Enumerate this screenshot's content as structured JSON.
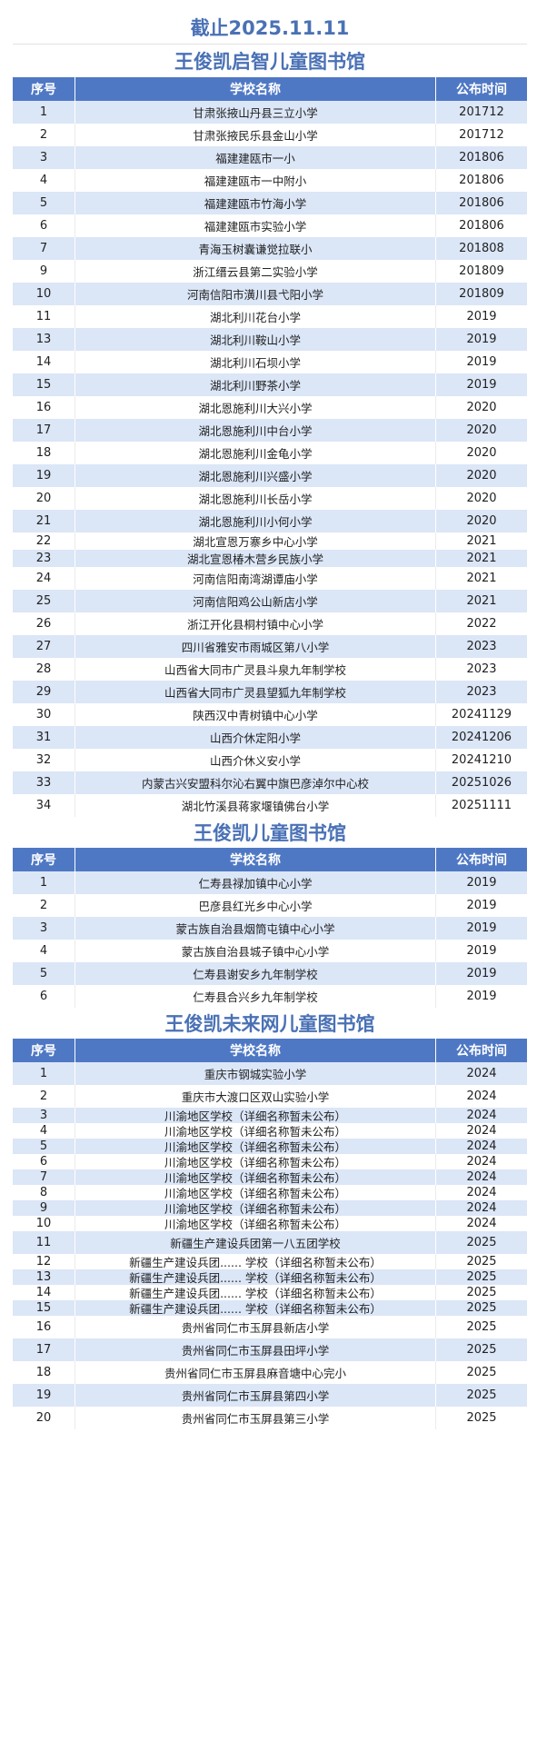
{
  "header": {
    "date_line": "截止2025.11.11"
  },
  "columns": {
    "no": "序号",
    "school": "学校名称",
    "date": "公布时间"
  },
  "sections": [
    {
      "title": "王俊凯启智儿童图书馆",
      "rows": [
        {
          "no": "1",
          "school": "甘肃张掖山丹县三立小学",
          "date": "201712"
        },
        {
          "no": "2",
          "school": "甘肃张掖民乐县金山小学",
          "date": "201712"
        },
        {
          "no": "3",
          "school": "福建建瓯市一小",
          "date": "201806"
        },
        {
          "no": "4",
          "school": "福建建瓯市一中附小",
          "date": "201806"
        },
        {
          "no": "5",
          "school": "福建建瓯市竹海小学",
          "date": "201806"
        },
        {
          "no": "6",
          "school": "福建建瓯市实验小学",
          "date": "201806"
        },
        {
          "no": "7",
          "school": "青海玉树囊谦觉拉联小",
          "date": "201808"
        },
        {
          "no": "9",
          "school": "浙江缙云县第二实验小学",
          "date": "201809"
        },
        {
          "no": "10",
          "school": "河南信阳市潢川县弋阳小学",
          "date": "201809"
        },
        {
          "no": "11",
          "school": "湖北利川花台小学",
          "date": "2019"
        },
        {
          "no": "13",
          "school": "湖北利川鞍山小学",
          "date": "2019"
        },
        {
          "no": "14",
          "school": "湖北利川石坝小学",
          "date": "2019"
        },
        {
          "no": "15",
          "school": "湖北利川野茶小学",
          "date": "2019"
        },
        {
          "no": "16",
          "school": "湖北恩施利川大兴小学",
          "date": "2020"
        },
        {
          "no": "17",
          "school": "湖北恩施利川中台小学",
          "date": "2020"
        },
        {
          "no": "18",
          "school": "湖北恩施利川金龟小学",
          "date": "2020"
        },
        {
          "no": "19",
          "school": "湖北恩施利川兴盛小学",
          "date": "2020"
        },
        {
          "no": "20",
          "school": "湖北恩施利川长岳小学",
          "date": "2020"
        },
        {
          "no": "21",
          "school": "湖北恩施利川小何小学",
          "date": "2020"
        },
        {
          "no": "22",
          "school": "湖北宣恩万寨乡中心小学",
          "date": "2021"
        },
        {
          "no": "23",
          "school": "湖北宣恩椿木营乡民族小学",
          "date": "2021"
        },
        {
          "no": "24",
          "school": "河南信阳南湾湖谭庙小学",
          "date": "2021"
        },
        {
          "no": "25",
          "school": "河南信阳鸡公山新店小学",
          "date": "2021"
        },
        {
          "no": "26",
          "school": "浙江开化县桐村镇中心小学",
          "date": "2022"
        },
        {
          "no": "27",
          "school": "四川省雅安市雨城区第八小学",
          "date": "2023"
        },
        {
          "no": "28",
          "school": "山西省大同市广灵县斗泉九年制学校",
          "date": "2023"
        },
        {
          "no": "29",
          "school": "山西省大同市广灵县望狐九年制学校",
          "date": "2023"
        },
        {
          "no": "30",
          "school": "陕西汉中青树镇中心小学",
          "date": "20241129"
        },
        {
          "no": "31",
          "school": "山西介休定阳小学",
          "date": "20241206"
        },
        {
          "no": "32",
          "school": "山西介休义安小学",
          "date": "20241210"
        },
        {
          "no": "33",
          "school": "内蒙古兴安盟科尔沁右翼中旗巴彦淖尔中心校",
          "date": "20251026"
        },
        {
          "no": "34",
          "school": "湖北竹溪县蒋家堰镇佛台小学",
          "date": "20251111"
        }
      ]
    },
    {
      "title": "王俊凯儿童图书馆",
      "rows": [
        {
          "no": "1",
          "school": "仁寿县禄加镇中心小学",
          "date": "2019"
        },
        {
          "no": "2",
          "school": "巴彦县红光乡中心小学",
          "date": "2019"
        },
        {
          "no": "3",
          "school": "蒙古族自治县烟筒屯镇中心小学",
          "date": "2019"
        },
        {
          "no": "4",
          "school": "蒙古族自治县城子镇中心小学",
          "date": "2019"
        },
        {
          "no": "5",
          "school": "仁寿县谢安乡九年制学校",
          "date": "2019"
        },
        {
          "no": "6",
          "school": "仁寿县合兴乡九年制学校",
          "date": "2019"
        }
      ]
    },
    {
      "title": "王俊凯未来网儿童图书馆",
      "rows": [
        {
          "no": "1",
          "school": "重庆市钢城实验小学",
          "date": "2024"
        },
        {
          "no": "2",
          "school": "重庆市大渡口区双山实验小学",
          "date": "2024"
        },
        {
          "no": "3",
          "school": "川渝地区学校（详细名称暂未公布）",
          "date": "2024"
        },
        {
          "no": "4",
          "school": "川渝地区学校（详细名称暂未公布）",
          "date": "2024"
        },
        {
          "no": "5",
          "school": "川渝地区学校（详细名称暂未公布）",
          "date": "2024"
        },
        {
          "no": "6",
          "school": "川渝地区学校（详细名称暂未公布）",
          "date": "2024"
        },
        {
          "no": "7",
          "school": "川渝地区学校（详细名称暂未公布）",
          "date": "2024"
        },
        {
          "no": "8",
          "school": "川渝地区学校（详细名称暂未公布）",
          "date": "2024"
        },
        {
          "no": "9",
          "school": "川渝地区学校（详细名称暂未公布）",
          "date": "2024"
        },
        {
          "no": "10",
          "school": "川渝地区学校（详细名称暂未公布）",
          "date": "2024"
        },
        {
          "no": "11",
          "school": "新疆生产建设兵团第一八五团学校",
          "date": "2025"
        },
        {
          "no": "12",
          "school": "新疆生产建设兵团...... 学校（详细名称暂未公布）",
          "date": "2025"
        },
        {
          "no": "13",
          "school": "新疆生产建设兵团...... 学校（详细名称暂未公布）",
          "date": "2025"
        },
        {
          "no": "14",
          "school": "新疆生产建设兵团...... 学校（详细名称暂未公布）",
          "date": "2025"
        },
        {
          "no": "15",
          "school": "新疆生产建设兵团...... 学校（详细名称暂未公布）",
          "date": "2025"
        },
        {
          "no": "16",
          "school": "贵州省同仁市玉屏县新店小学",
          "date": "2025"
        },
        {
          "no": "17",
          "school": "贵州省同仁市玉屏县田坪小学",
          "date": "2025"
        },
        {
          "no": "18",
          "school": "贵州省同仁市玉屏县麻音塘中心完小",
          "date": "2025"
        },
        {
          "no": "19",
          "school": "贵州省同仁市玉屏县第四小学",
          "date": "2025"
        },
        {
          "no": "20",
          "school": "贵州省同仁市玉屏县第三小学",
          "date": "2025"
        }
      ]
    }
  ]
}
